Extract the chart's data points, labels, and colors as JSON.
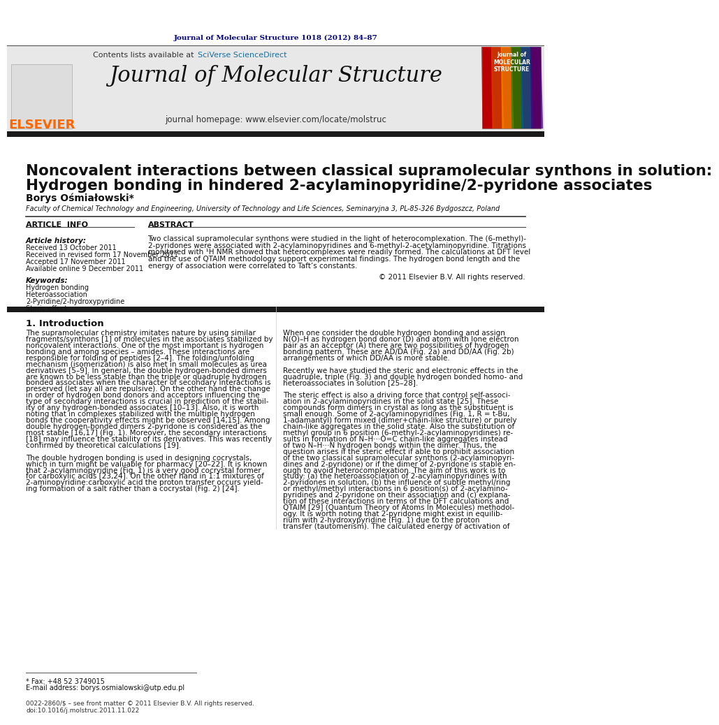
{
  "journal_ref": "Journal of Molecular Structure 1018 (2012) 84–87",
  "journal_ref_color": "#000080",
  "contents_text": "Contents lists available at ",
  "sciverse_text": "SciVerse ScienceDirect",
  "sciverse_color": "#1a6fa0",
  "journal_title": "Journal of Molecular Structure",
  "journal_homepage_text": "journal homepage: www.elsevier.com/locate/molstruc",
  "elsevier_color": "#FF6600",
  "paper_title_line1": "Noncovalent interactions between classical supramolecular synthons in solution:",
  "paper_title_line2": "Hydrogen bonding in hindered 2-acylaminopyridine/2-pyridone associates",
  "author": "Borys Ośmiałowski*",
  "affiliation": "Faculty of Chemical Technology and Engineering, University of Technology and Life Sciences, Seminaryjna 3, PL-85-326 Bydgoszcz, Poland",
  "article_info_label": "ARTICLE  INFO",
  "abstract_label": "ABSTRACT",
  "article_history_label": "Article history:",
  "received_label": "Received 13 October 2011",
  "revised_label": "Received in revised form 17 November 2011",
  "accepted_label": "Accepted 17 November 2011",
  "online_label": "Available online 9 December 2011",
  "keywords_label": "Keywords:",
  "keyword1": "Hydrogen bonding",
  "keyword2": "Heteroassociation",
  "keyword3": "2-Pyridine/2-hydroxypyridine",
  "keyword4": "Steric effect",
  "copyright_text": "© 2011 Elsevier B.V. All rights reserved.",
  "intro_heading": "1. Introduction",
  "footnote1": "* Fax: +48 52 3749015",
  "footnote2": "E-mail address: borys.osmialowski@utp.edu.pl",
  "footer1": "0022-2860/$ – see front matter © 2011 Elsevier B.V. All rights reserved.",
  "footer2": "doi:10.1016/j.molstruc.2011.11.022",
  "bg_color": "#ffffff",
  "header_bg": "#e8e8e8",
  "black_bar_color": "#1a1a1a",
  "separator_color": "#000000"
}
